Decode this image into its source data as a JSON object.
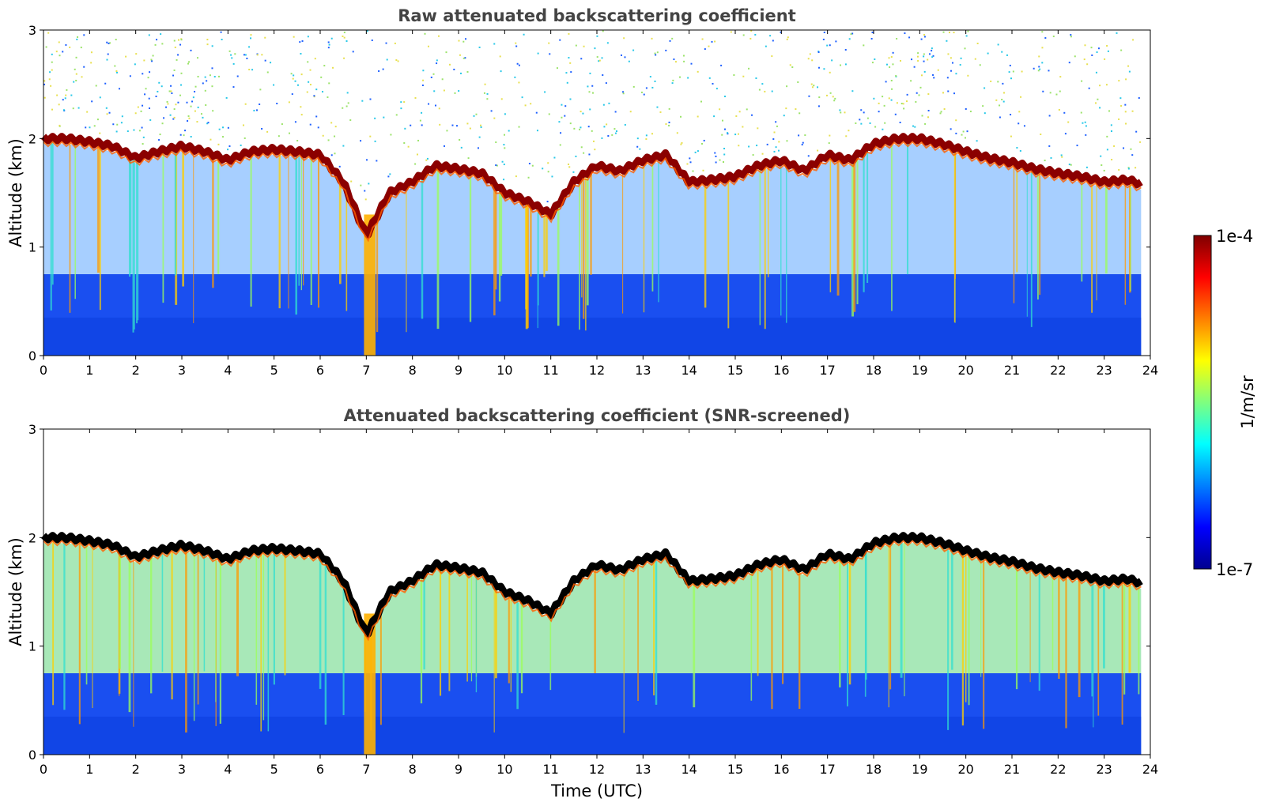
{
  "chart_data": [
    {
      "type": "heatmap",
      "title": "Raw attenuated backscattering coefficient",
      "ylabel": "Altitude (km)",
      "xlabel": "",
      "xlim": [
        0,
        24
      ],
      "ylim": [
        0,
        3
      ],
      "x_ticks": [
        "0",
        "1",
        "2",
        "3",
        "4",
        "5",
        "6",
        "7",
        "8",
        "9",
        "10",
        "11",
        "12",
        "13",
        "14",
        "15",
        "16",
        "17",
        "18",
        "19",
        "20",
        "21",
        "22",
        "23",
        "24"
      ],
      "y_ticks": [
        "0",
        "1",
        "2",
        "3"
      ],
      "screened": false,
      "cloud_top_profile_km": {
        "time_utc": [
          0,
          0.5,
          1,
          1.5,
          2,
          2.5,
          3,
          3.5,
          4,
          4.5,
          5,
          5.5,
          6,
          6.5,
          7,
          7.5,
          8,
          8.5,
          9,
          9.5,
          10,
          10.5,
          11,
          11.5,
          12,
          12.5,
          13,
          13.5,
          14,
          14.5,
          15,
          15.5,
          16,
          16.5,
          17,
          17.5,
          18,
          18.5,
          19,
          19.5,
          20,
          20.5,
          21,
          21.5,
          22,
          22.5,
          23,
          23.5,
          23.8
        ],
        "altitude_km": [
          2.0,
          2.0,
          1.97,
          1.93,
          1.82,
          1.88,
          1.93,
          1.88,
          1.8,
          1.88,
          1.9,
          1.88,
          1.85,
          1.6,
          1.1,
          1.5,
          1.6,
          1.75,
          1.72,
          1.68,
          1.5,
          1.42,
          1.3,
          1.6,
          1.75,
          1.7,
          1.8,
          1.85,
          1.6,
          1.62,
          1.65,
          1.75,
          1.8,
          1.7,
          1.85,
          1.8,
          1.95,
          2.0,
          2.0,
          1.95,
          1.88,
          1.82,
          1.78,
          1.72,
          1.68,
          1.65,
          1.6,
          1.62,
          1.58
        ]
      }
    },
    {
      "type": "heatmap",
      "title": "Attenuated backscattering coefficient (SNR-screened)",
      "ylabel": "Altitude (km)",
      "xlabel": "Time (UTC)",
      "xlim": [
        0,
        24
      ],
      "ylim": [
        0,
        3
      ],
      "x_ticks": [
        "0",
        "1",
        "2",
        "3",
        "4",
        "5",
        "6",
        "7",
        "8",
        "9",
        "10",
        "11",
        "12",
        "13",
        "14",
        "15",
        "16",
        "17",
        "18",
        "19",
        "20",
        "21",
        "22",
        "23",
        "24"
      ],
      "y_ticks": [
        "0",
        "1",
        "2",
        "3"
      ],
      "screened": true,
      "cloud_top_profile_km": {
        "time_utc": [
          0,
          0.5,
          1,
          1.5,
          2,
          2.5,
          3,
          3.5,
          4,
          4.5,
          5,
          5.5,
          6,
          6.5,
          7,
          7.5,
          8,
          8.5,
          9,
          9.5,
          10,
          10.5,
          11,
          11.5,
          12,
          12.5,
          13,
          13.5,
          14,
          14.5,
          15,
          15.5,
          16,
          16.5,
          17,
          17.5,
          18,
          18.5,
          19,
          19.5,
          20,
          20.5,
          21,
          21.5,
          22,
          22.5,
          23,
          23.5,
          23.8
        ],
        "altitude_km": [
          2.0,
          2.0,
          1.97,
          1.93,
          1.82,
          1.88,
          1.93,
          1.88,
          1.8,
          1.88,
          1.9,
          1.88,
          1.85,
          1.6,
          1.1,
          1.5,
          1.6,
          1.75,
          1.72,
          1.68,
          1.5,
          1.42,
          1.3,
          1.6,
          1.75,
          1.7,
          1.8,
          1.85,
          1.6,
          1.62,
          1.65,
          1.75,
          1.8,
          1.7,
          1.85,
          1.8,
          1.95,
          2.0,
          2.0,
          1.95,
          1.88,
          1.82,
          1.78,
          1.72,
          1.68,
          1.65,
          1.6,
          1.62,
          1.58
        ]
      }
    }
  ],
  "colorbar": {
    "min_label": "1e-7",
    "max_label": "1e-4",
    "label": "1/m/sr",
    "scale": "log",
    "colormap": [
      "#00008f",
      "#0000ff",
      "#007fff",
      "#00ffff",
      "#7fff7f",
      "#ffff00",
      "#ff7f00",
      "#ff0000",
      "#7f0000"
    ]
  },
  "colors": {
    "low_signal": "#1a4ff0",
    "cloud_layer": "#8b0000",
    "screened_cloud_top": "#000000",
    "title_text": "#444444"
  }
}
